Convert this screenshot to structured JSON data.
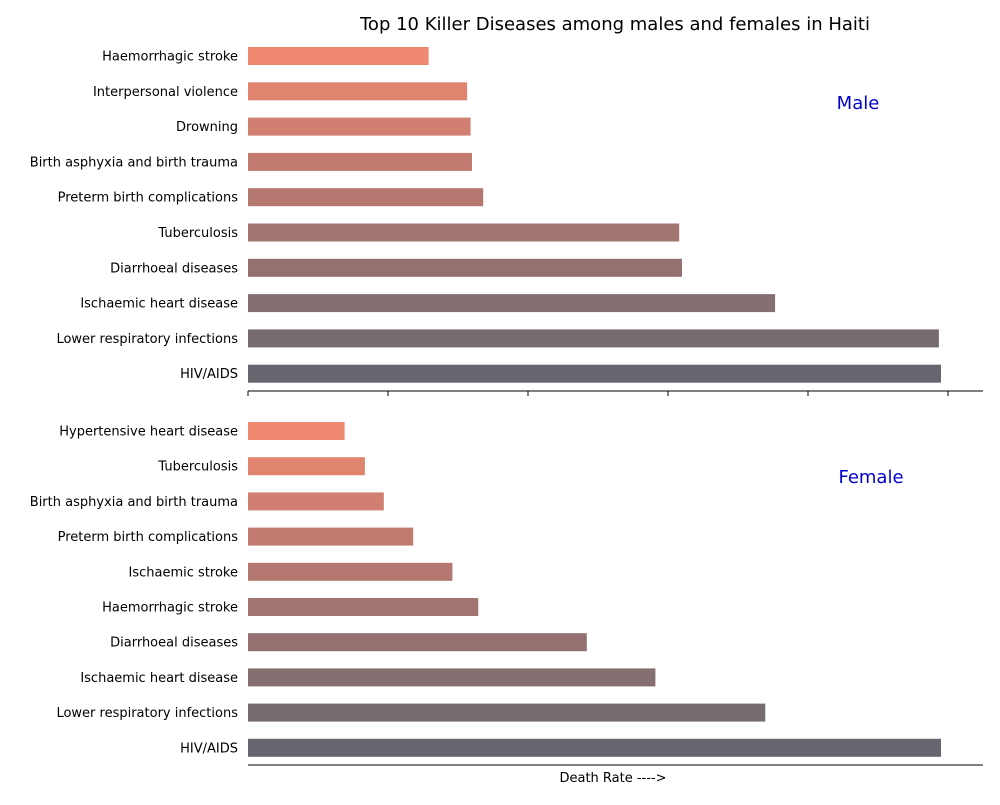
{
  "chart_data": {
    "type": "bar",
    "orientation": "horizontal",
    "title": "Top 10 Killer Diseases among males and females in Haiti",
    "xlabel": "Death Rate ---->",
    "colors_top_to_bottom": [
      "#ef896f",
      "#e0846f",
      "#d17f70",
      "#c27a70",
      "#b47870",
      "#a37570",
      "#947170",
      "#856f70",
      "#766b70",
      "#66666f"
    ],
    "panels": [
      {
        "label": "Male",
        "xlim": [
          0,
          100
        ],
        "categories": [
          "Haemorrhagic stroke",
          "Interpersonal violence",
          "Drowning",
          "Birth asphyxia and birth trauma",
          "Preterm birth complications",
          "Tuberculosis",
          "Diarrhoeal diseases",
          "Ischaemic heart disease",
          "Lower respiratory infections",
          "HIV/AIDS"
        ],
        "values": [
          25.8,
          31.3,
          31.8,
          32.0,
          33.6,
          61.6,
          62.0,
          75.3,
          98.7,
          99.0
        ]
      },
      {
        "label": "Female",
        "xlim": [
          0,
          100
        ],
        "categories": [
          "Hypertensive heart disease",
          "Tuberculosis",
          "Birth asphyxia and birth trauma",
          "Preterm birth complications",
          "Ischaemic stroke",
          "Haemorrhagic stroke",
          "Diarrhoeal diseases",
          "Ischaemic heart disease",
          "Lower respiratory infections",
          "HIV/AIDS"
        ],
        "values": [
          13.8,
          16.7,
          19.4,
          23.6,
          29.2,
          32.9,
          48.4,
          58.2,
          73.9,
          99.0
        ]
      }
    ]
  }
}
